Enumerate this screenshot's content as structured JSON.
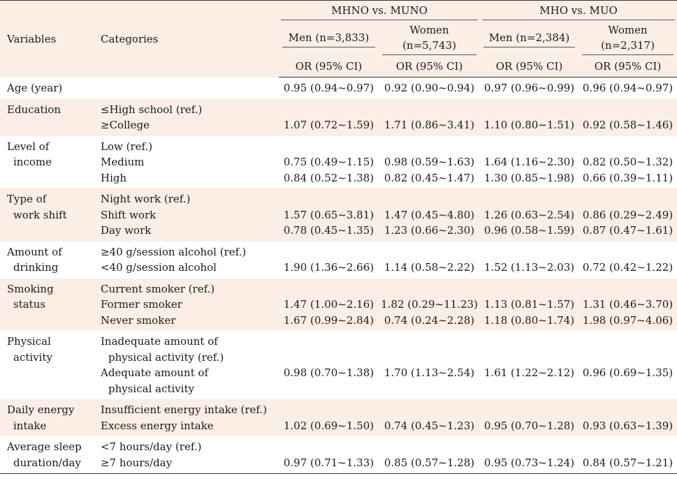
{
  "header": {
    "variables": "Variables",
    "categories": "Categories",
    "group1": "MHNO vs. MUNO",
    "group2": "MHO vs. MUO",
    "subgroups": [
      "Men (n=3,833)",
      "Women (n=5,743)",
      "Men (n=2,384)",
      "Women (n=2,317)"
    ],
    "or_label": "OR (95% CI)"
  },
  "rows": [
    {
      "var": [
        "Age (year)"
      ],
      "cats": [
        ""
      ],
      "vals": [
        [
          "0.95 (0.94~0.97)"
        ],
        [
          "0.92 (0.90~0.94)"
        ],
        [
          "0.97 (0.96~0.99)"
        ],
        [
          "0.96 (0.94~0.97)"
        ]
      ]
    },
    {
      "var": [
        "Education"
      ],
      "cats": [
        "≤High school (ref.)",
        "≥College"
      ],
      "vals": [
        [
          "",
          "1.07 (0.72~1.59)"
        ],
        [
          "",
          "1.71 (0.86~3.41)"
        ],
        [
          "",
          "1.10 (0.80~1.51)"
        ],
        [
          "",
          "0.92 (0.58~1.46)"
        ]
      ]
    },
    {
      "var": [
        "Level of",
        "income"
      ],
      "cats": [
        "Low (ref.)",
        "Medium",
        "High"
      ],
      "vals": [
        [
          "",
          "0.75 (0.49~1.15)",
          "0.84 (0.52~1.38)"
        ],
        [
          "",
          "0.98 (0.59~1.63)",
          "0.82 (0.45~1.47)"
        ],
        [
          "",
          "1.64 (1.16~2.30)",
          "1.30 (0.85~1.98)"
        ],
        [
          "",
          "0.82 (0.50~1.32)",
          "0.66 (0.39~1.11)"
        ]
      ]
    },
    {
      "var": [
        "Type of",
        "work shift"
      ],
      "cats": [
        "Night work (ref.)",
        "Shift work",
        "Day work"
      ],
      "vals": [
        [
          "",
          "1.57 (0.65~3.81)",
          "0.78 (0.45~1.35)"
        ],
        [
          "",
          "1.47 (0.45~4.80)",
          "1.23 (0.66~2.30)"
        ],
        [
          "",
          "1.26 (0.63~2.54)",
          "0.96 (0.58~1.59)"
        ],
        [
          "",
          "0.86 (0.29~2.49)",
          "0.87 (0.47~1.61)"
        ]
      ]
    },
    {
      "var": [
        "Amount of",
        "drinking"
      ],
      "cats": [
        "≥40 g/session alcohol (ref.)",
        "<40 g/session alcohol"
      ],
      "vals": [
        [
          "",
          "1.90 (1.36~2.66)"
        ],
        [
          "",
          "1.14 (0.58~2.22)"
        ],
        [
          "",
          "1.52 (1.13~2.03)"
        ],
        [
          "",
          "0.72 (0.42~1.22)"
        ]
      ]
    },
    {
      "var": [
        "Smoking",
        "status"
      ],
      "cats": [
        "Current smoker (ref.)",
        "Former smoker",
        "Never smoker"
      ],
      "vals": [
        [
          "",
          "1.47 (1.00~2.16)",
          "1.67 (0.99~2.84)"
        ],
        [
          "",
          "1.82 (0.29~11.23)",
          "0.74 (0.24~2.28)"
        ],
        [
          "",
          "1.13 (0.81~1.57)",
          "1.18 (0.80~1.74)"
        ],
        [
          "",
          "1.31 (0.46~3.70)",
          "1.98 (0.97~4.06)"
        ]
      ]
    },
    {
      "var": [
        "Physical",
        "activity"
      ],
      "cats": [
        "Inadequate amount of",
        "physical activity (ref.)",
        "Adequate amount of",
        "physical activity"
      ],
      "vals": [
        [
          "",
          "",
          "0.98 (0.70~1.38)",
          ""
        ],
        [
          "",
          "",
          "1.70 (1.13~2.54)",
          ""
        ],
        [
          "",
          "",
          "1.61 (1.22~2.12)",
          ""
        ],
        [
          "",
          "",
          "0.96 (0.69~1.35)",
          ""
        ]
      ]
    },
    {
      "var": [
        "Daily energy",
        "intake"
      ],
      "cats": [
        "Insufficient energy intake (ref.)",
        "Excess energy intake"
      ],
      "vals": [
        [
          "",
          "1.02 (0.69~1.50)"
        ],
        [
          "",
          "0.74 (0.45~1.23)"
        ],
        [
          "",
          "0.95 (0.70~1.28)"
        ],
        [
          "",
          "0.93 (0.63~1.39)"
        ]
      ]
    },
    {
      "var": [
        "Average sleep",
        "duration/day"
      ],
      "cats": [
        "<7 hours/day (ref.)",
        "≥7 hours/day"
      ],
      "vals": [
        [
          "",
          "0.97 (0.71~1.33)"
        ],
        [
          "",
          "0.85 (0.57~1.28)"
        ],
        [
          "",
          "0.95 (0.73~1.24)"
        ],
        [
          "",
          "0.84 (0.57~1.21)"
        ]
      ]
    }
  ]
}
